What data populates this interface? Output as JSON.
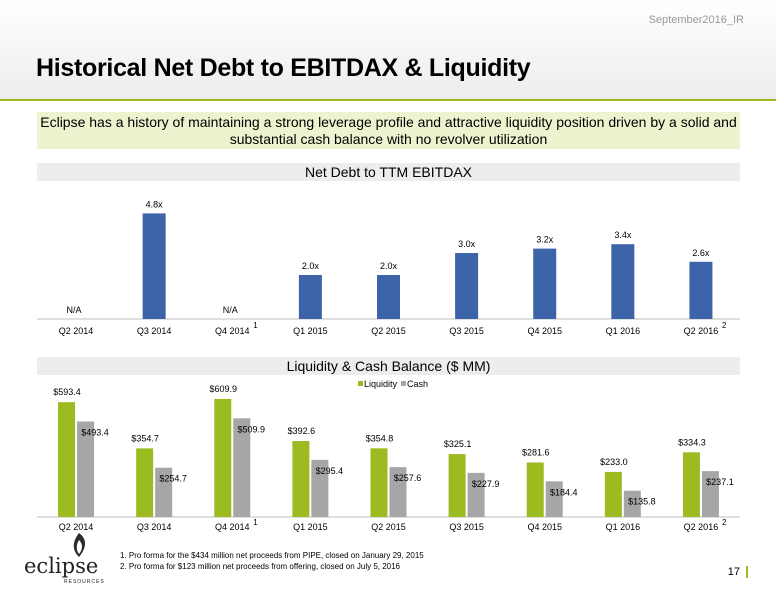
{
  "header": {
    "tag": "September2016_IR",
    "title": "Historical Net Debt to EBITDAX & Liquidity"
  },
  "summary": "Eclipse has a history of maintaining a strong leverage profile and attractive liquidity position driven by a solid and substantial cash balance with no revolver utilization",
  "colors": {
    "accent": "#9bbb20",
    "net_debt_bar": "#3d63a8",
    "liquidity_bar": "#9bbb20",
    "cash_bar": "#a6a6a6"
  },
  "chart_data": [
    {
      "type": "bar",
      "title": "Net Debt to TTM EBITDAX",
      "categories": [
        "Q2 2014",
        "Q3 2014",
        "Q4 2014",
        "Q1 2015",
        "Q2 2015",
        "Q3 2015",
        "Q4 2015",
        "Q1 2016",
        "Q2 2016"
      ],
      "category_footnotes": [
        "",
        "",
        "1",
        "",
        "",
        "",
        "",
        "",
        "2"
      ],
      "values": [
        null,
        4.8,
        null,
        2.0,
        2.0,
        3.0,
        3.2,
        3.4,
        2.6
      ],
      "labels": [
        "N/A",
        "4.8x",
        "N/A",
        "2.0x",
        "2.0x",
        "3.0x",
        "3.2x",
        "3.4x",
        "2.6x"
      ],
      "ylim": [
        0,
        5
      ]
    },
    {
      "type": "bar",
      "title": "Liquidity & Cash Balance ($ MM)",
      "categories": [
        "Q2 2014",
        "Q3 2014",
        "Q4 2014",
        "Q1 2015",
        "Q2 2015",
        "Q3 2015",
        "Q4 2015",
        "Q1 2016",
        "Q2 2016"
      ],
      "category_footnotes": [
        "",
        "",
        "1",
        "",
        "",
        "",
        "",
        "",
        "2"
      ],
      "legend_position": "top-center",
      "series": [
        {
          "name": "Liquidity",
          "values": [
            593.4,
            354.7,
            609.9,
            392.6,
            354.8,
            325.1,
            281.6,
            233.0,
            334.3
          ],
          "labels": [
            "$593.4",
            "$354.7",
            "$609.9",
            "$392.6",
            "$354.8",
            "$325.1",
            "$281.6",
            "$233.0",
            "$334.3"
          ]
        },
        {
          "name": "Cash",
          "values": [
            493.4,
            254.7,
            509.9,
            295.4,
            257.6,
            227.9,
            184.4,
            135.8,
            237.1
          ],
          "labels": [
            "$493.4",
            "$254.7",
            "$509.9",
            "$295.4",
            "$257.6",
            "$227.9",
            "$184.4",
            "$135.8",
            "$237.1"
          ]
        }
      ],
      "ylim": [
        0,
        620
      ]
    }
  ],
  "footnotes": [
    "1. Pro forma for the $434 million net proceeds from PIPE, closed on January 29, 2015",
    "2. Pro forma for $123 million net proceeds from offering, closed on July 5, 2016"
  ],
  "logo": {
    "name": "eclipse",
    "sub": "RESOURCES"
  },
  "page_number": "17"
}
